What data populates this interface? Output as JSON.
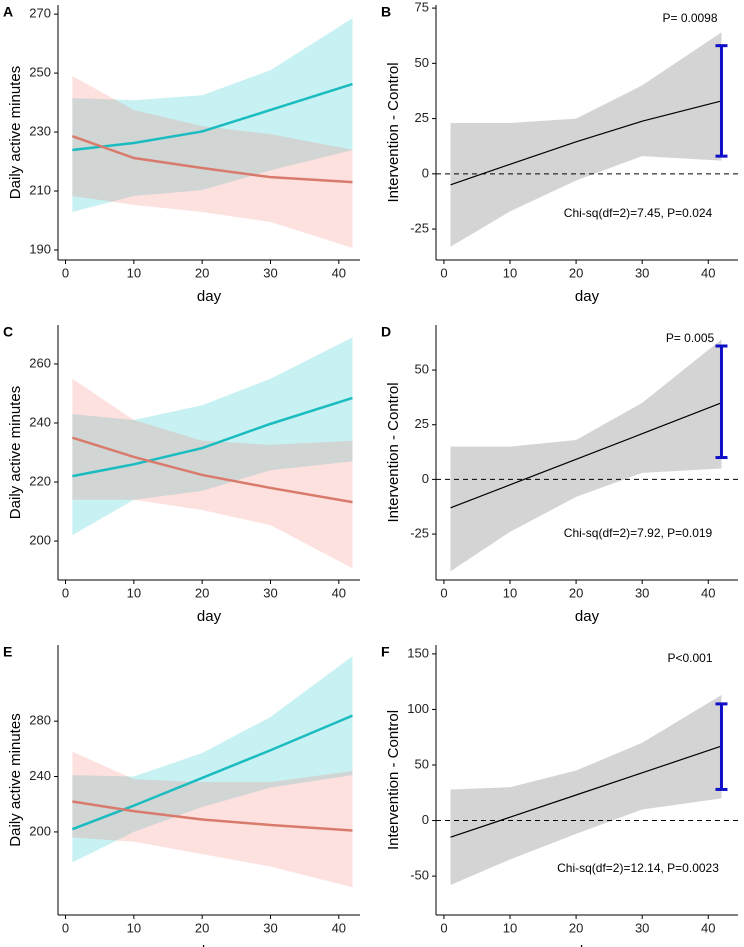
{
  "chart_data": [
    {
      "type": "line",
      "label": "A",
      "xlabel": "day",
      "ylabel": "Daily active minutes",
      "x": [
        1,
        10,
        20,
        30,
        42
      ],
      "xlim": [
        -1.1,
        43.1
      ],
      "xticks": [
        0,
        10,
        20,
        30,
        40
      ],
      "ylim": [
        186.6,
        273.1
      ],
      "yticks": [
        190,
        210,
        230,
        250,
        270
      ],
      "series": [
        {
          "color": "#1bbcc0",
          "fill": "#00bfc4",
          "values": [
            223.9,
            226.3,
            230.2,
            237.5,
            246.3
          ],
          "lower": [
            202.9,
            208.3,
            210.3,
            217,
            223.9
          ],
          "upper": [
            241.5,
            240.8,
            242.5,
            251,
            268.6
          ]
        },
        {
          "color": "#d97b6c",
          "fill": "#f8766d",
          "values": [
            228.6,
            221.2,
            217.8,
            214.7,
            213
          ],
          "lower": [
            208.3,
            205.3,
            202.9,
            199.5,
            190.7
          ],
          "upper": [
            249,
            237.5,
            232,
            229.3,
            224
          ]
        }
      ]
    },
    {
      "type": "line",
      "label": "B",
      "xlabel": "day",
      "ylabel": "Intervention - Control",
      "x": [
        1,
        10,
        20,
        30,
        42
      ],
      "xlim": [
        -1.2,
        44.5
      ],
      "xticks": [
        0,
        10,
        20,
        30,
        40
      ],
      "ylim": [
        -39,
        76.4
      ],
      "yticks": [
        -25,
        0,
        25,
        50,
        75
      ],
      "hline": 0,
      "series": [
        {
          "color": "#000000",
          "fill": "#bdbdbd",
          "values": [
            -5,
            4.3,
            14.5,
            23.8,
            33
          ],
          "lower": [
            -33,
            -17,
            -3,
            8,
            6
          ],
          "upper": [
            23,
            23,
            25,
            40,
            64
          ]
        }
      ],
      "error_bar": {
        "x": 42,
        "low": 8,
        "high": 58,
        "color": "#1010c8"
      },
      "annotations": [
        "P= 0.0098",
        "Chi-sq(df=2)=7.45, P=0.024"
      ]
    },
    {
      "type": "line",
      "label": "C",
      "xlabel": "day",
      "ylabel": "Daily active minutes",
      "x": [
        1,
        10,
        20,
        30,
        42
      ],
      "xlim": [
        -1.1,
        43.1
      ],
      "xticks": [
        0,
        10,
        20,
        30,
        40
      ],
      "ylim": [
        186.8,
        273.2
      ],
      "yticks": [
        200,
        220,
        240,
        260
      ],
      "series": [
        {
          "color": "#1bbcc0",
          "fill": "#00bfc4",
          "values": [
            222,
            226,
            231.5,
            239.7,
            248.5
          ],
          "lower": [
            202,
            214,
            217,
            224,
            227
          ],
          "upper": [
            243,
            241,
            246,
            255,
            269
          ]
        },
        {
          "color": "#d97b6c",
          "fill": "#f8766d",
          "values": [
            235,
            228.5,
            222.4,
            218,
            213.2
          ],
          "lower": [
            214,
            214,
            210.5,
            205.4,
            190.8
          ],
          "upper": [
            255,
            241,
            234,
            232.6,
            234
          ]
        }
      ]
    },
    {
      "type": "line",
      "label": "D",
      "xlabel": "day",
      "ylabel": "Intervention - Control",
      "x": [
        1,
        10,
        20,
        30,
        42
      ],
      "xlim": [
        -1.2,
        44.5
      ],
      "xticks": [
        0,
        10,
        20,
        30,
        40
      ],
      "ylim": [
        -46,
        70.6
      ],
      "yticks": [
        -25,
        0,
        25,
        50
      ],
      "hline": 0,
      "series": [
        {
          "color": "#000000",
          "fill": "#bdbdbd",
          "values": [
            -13,
            -2.5,
            9.2,
            20.9,
            35
          ],
          "lower": [
            -42,
            -24,
            -8,
            3,
            5
          ],
          "upper": [
            15,
            15,
            18,
            35,
            64
          ]
        }
      ],
      "error_bar": {
        "x": 42,
        "low": 10,
        "high": 61,
        "color": "#1010c8"
      },
      "annotations": [
        "P= 0.005",
        "Chi-sq(df=2)=7.92, P=0.019"
      ]
    },
    {
      "type": "line",
      "label": "E",
      "xlabel": "day",
      "ylabel": "Daily active minutes",
      "x": [
        1,
        10,
        20,
        30,
        42
      ],
      "xlim": [
        -1.1,
        43.1
      ],
      "xticks": [
        0,
        10,
        20,
        30,
        40
      ],
      "ylim": [
        140,
        335
      ],
      "yticks": [
        200,
        240,
        280
      ],
      "series": [
        {
          "color": "#1bbcc0",
          "fill": "#00bfc4",
          "values": [
            202,
            219,
            239,
            259,
            284
          ],
          "lower": [
            178,
            200,
            218,
            232,
            241
          ],
          "upper": [
            241,
            240,
            257,
            283,
            327
          ]
        },
        {
          "color": "#d97b6c",
          "fill": "#f8766d",
          "values": [
            222,
            215,
            209,
            205,
            201
          ],
          "lower": [
            196,
            193,
            184,
            175,
            160
          ],
          "upper": [
            258,
            238,
            236,
            236,
            244
          ]
        }
      ]
    },
    {
      "type": "line",
      "label": "F",
      "xlabel": "day",
      "ylabel": "Intervention - Control",
      "x": [
        1,
        10,
        20,
        30,
        42
      ],
      "xlim": [
        -1.2,
        44.5
      ],
      "xticks": [
        0,
        10,
        20,
        30,
        40
      ],
      "ylim": [
        -85,
        158
      ],
      "yticks": [
        -50,
        0,
        50,
        100,
        150
      ],
      "hline": 0,
      "series": [
        {
          "color": "#000000",
          "fill": "#bdbdbd",
          "values": [
            -15,
            3,
            23,
            43,
            67
          ],
          "lower": [
            -58,
            -35,
            -12,
            10,
            20
          ],
          "upper": [
            28,
            30,
            45,
            70,
            113
          ]
        }
      ],
      "error_bar": {
        "x": 42,
        "low": 28,
        "high": 105,
        "color": "#1010c8"
      },
      "annotations": [
        "P<0.001",
        "Chi-sq(df=2)=12.14, P=0.0023"
      ]
    }
  ]
}
